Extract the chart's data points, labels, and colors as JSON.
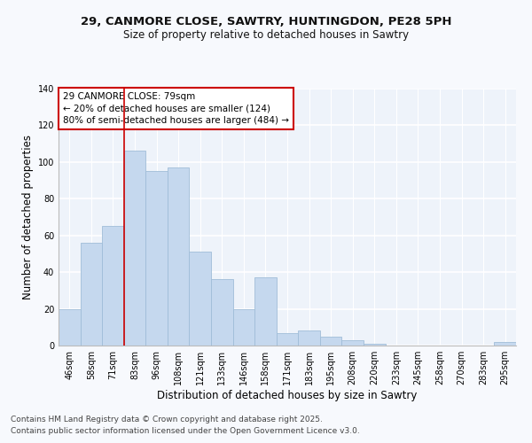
{
  "title_line1": "29, CANMORE CLOSE, SAWTRY, HUNTINGDON, PE28 5PH",
  "title_line2": "Size of property relative to detached houses in Sawtry",
  "xlabel": "Distribution of detached houses by size in Sawtry",
  "ylabel": "Number of detached properties",
  "categories": [
    "46sqm",
    "58sqm",
    "71sqm",
    "83sqm",
    "96sqm",
    "108sqm",
    "121sqm",
    "133sqm",
    "146sqm",
    "158sqm",
    "171sqm",
    "183sqm",
    "195sqm",
    "208sqm",
    "220sqm",
    "233sqm",
    "245sqm",
    "258sqm",
    "270sqm",
    "283sqm",
    "295sqm"
  ],
  "values": [
    20,
    56,
    65,
    106,
    95,
    97,
    51,
    36,
    20,
    37,
    7,
    8,
    5,
    3,
    1,
    0,
    0,
    0,
    0,
    0,
    2
  ],
  "bar_color": "#c5d8ee",
  "bar_edge_color": "#a0bdd8",
  "fig_background": "#f7f9fd",
  "ax_background": "#eef3fa",
  "grid_color": "#ffffff",
  "vline_color": "#cc0000",
  "vline_x_index": 2.5,
  "annotation_text": "29 CANMORE CLOSE: 79sqm\n← 20% of detached houses are smaller (124)\n80% of semi-detached houses are larger (484) →",
  "annotation_box_edge": "#cc0000",
  "ylim": [
    0,
    140
  ],
  "yticks": [
    0,
    20,
    40,
    60,
    80,
    100,
    120,
    140
  ],
  "footer_line1": "Contains HM Land Registry data © Crown copyright and database right 2025.",
  "footer_line2": "Contains public sector information licensed under the Open Government Licence v3.0.",
  "title_fontsize": 9.5,
  "subtitle_fontsize": 8.5,
  "axis_label_fontsize": 8.5,
  "tick_fontsize": 7,
  "annotation_fontsize": 7.5,
  "footer_fontsize": 6.5
}
